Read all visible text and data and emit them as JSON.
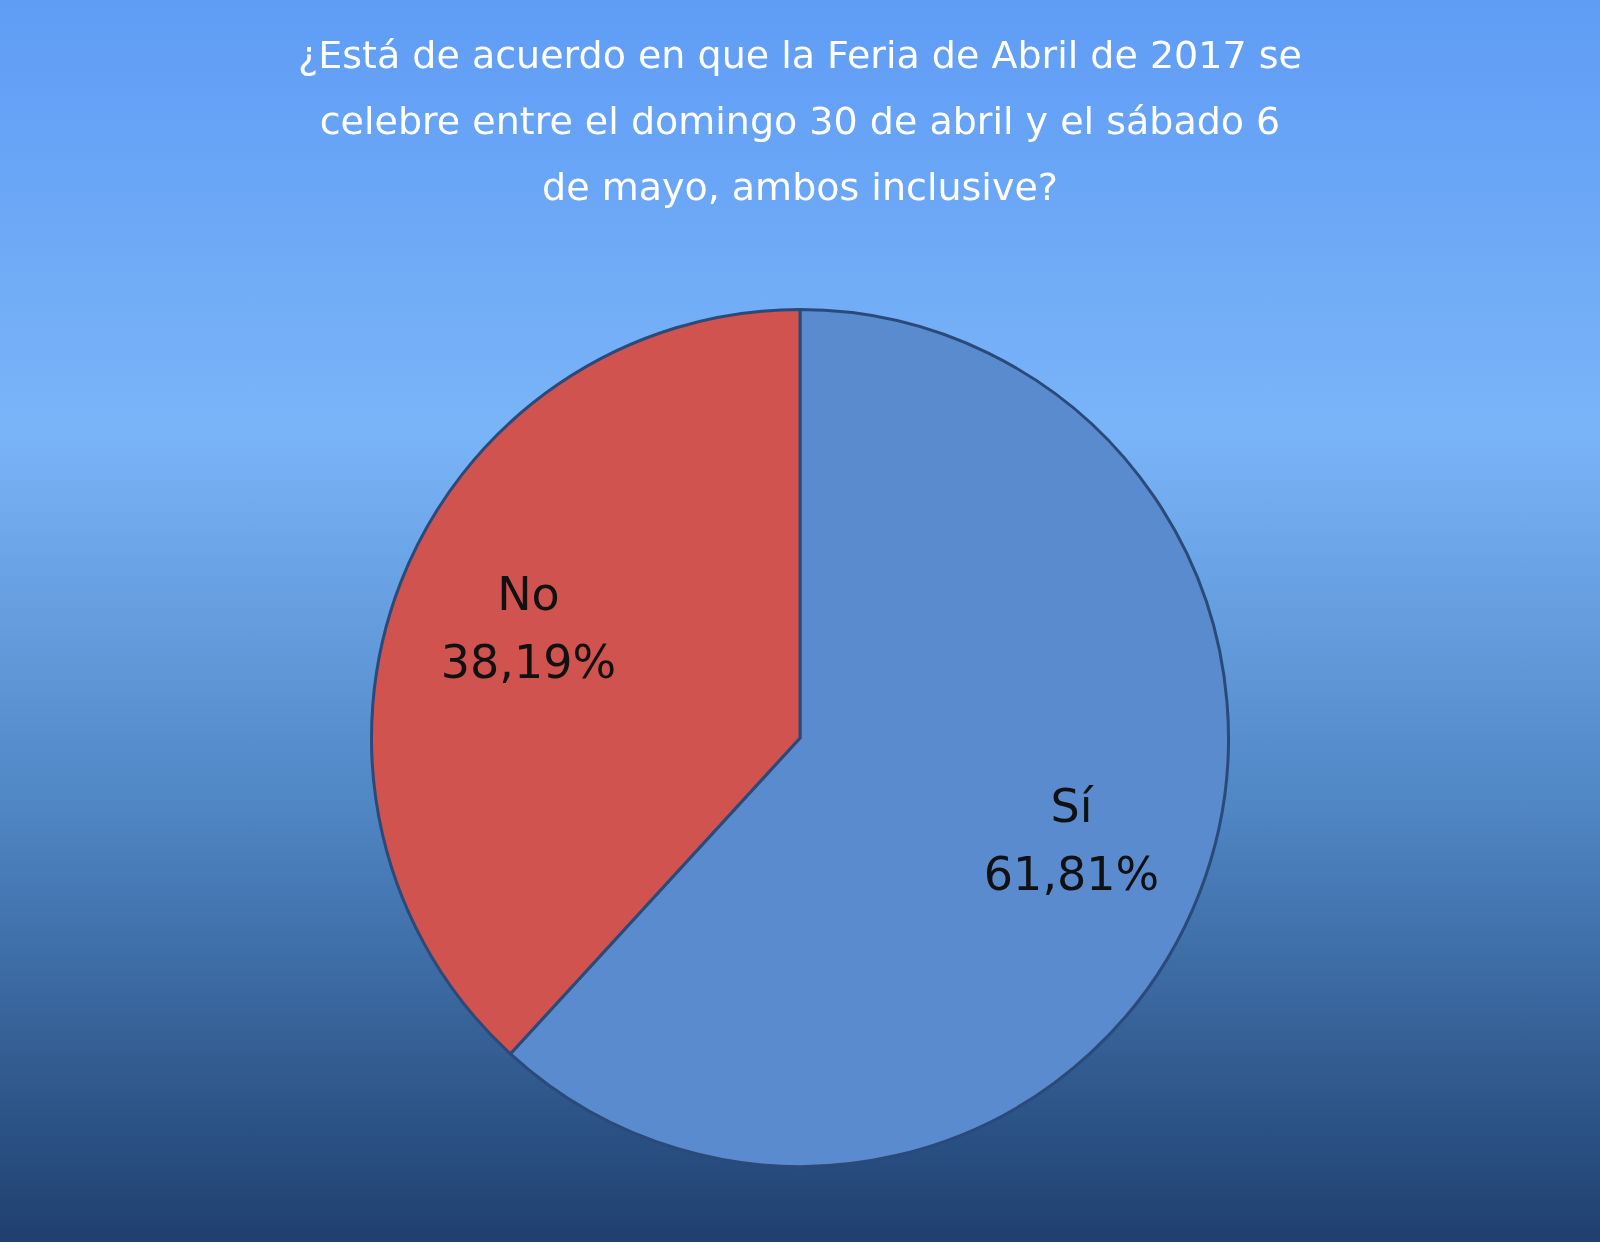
{
  "chart_data": {
    "type": "pie",
    "title": "¿Está de acuerdo en que la Feria de Abril de 2017 se celebre entre el domingo 30 de abril y el sábado 6 de mayo, ambos inclusive?",
    "categories": [
      "Sí",
      "No"
    ],
    "values": [
      61.81,
      38.19
    ],
    "value_labels": [
      "61,81%",
      "38,19%"
    ],
    "colors": [
      "#5a8bcf",
      "#d0534f"
    ],
    "legend": false
  }
}
